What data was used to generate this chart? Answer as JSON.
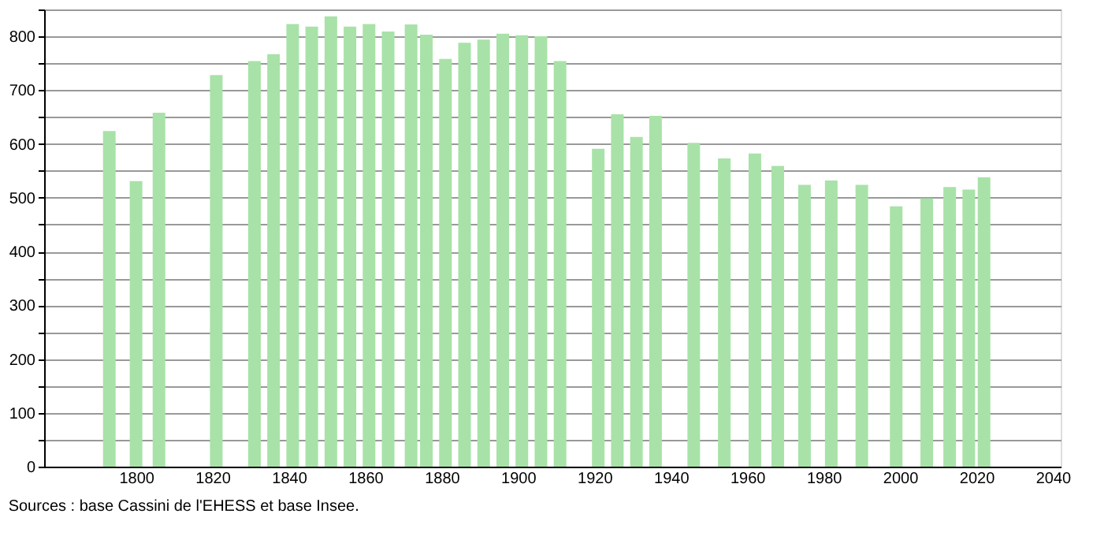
{
  "chart_data": {
    "type": "bar",
    "x": [
      1793,
      1800,
      1806,
      1821,
      1831,
      1836,
      1841,
      1846,
      1851,
      1856,
      1861,
      1866,
      1872,
      1876,
      1881,
      1886,
      1891,
      1896,
      1901,
      1906,
      1911,
      1921,
      1926,
      1931,
      1936,
      1946,
      1954,
      1962,
      1968,
      1975,
      1982,
      1990,
      1999,
      2007,
      2013,
      2018,
      2022
    ],
    "values": [
      624,
      531,
      658,
      728,
      754,
      767,
      823,
      818,
      837,
      818,
      823,
      809,
      822,
      803,
      758,
      788,
      794,
      805,
      802,
      800,
      754,
      591,
      655,
      613,
      652,
      602,
      573,
      582,
      559,
      524,
      532,
      524,
      484,
      499,
      520,
      515,
      538
    ],
    "color": "#a8e2a8",
    "xlim": [
      1778,
      2040
    ],
    "xticks": [
      1800,
      1820,
      1840,
      1860,
      1880,
      1900,
      1920,
      1940,
      1960,
      1980,
      2000,
      2020,
      2040
    ],
    "ylim": [
      0,
      850
    ],
    "yticks": [
      0,
      {
        "value": 50,
        "label": null
      },
      100,
      {
        "value": 150,
        "label": null
      },
      200,
      {
        "value": 250,
        "label": null
      },
      300,
      {
        "value": 350,
        "label": null
      },
      400,
      {
        "value": 450,
        "label": null
      },
      500,
      {
        "value": 550,
        "label": null
      },
      600,
      {
        "value": 650,
        "label": null
      },
      700,
      {
        "value": 750,
        "label": null
      },
      800,
      {
        "value": 850,
        "label": null
      }
    ],
    "grid": "y",
    "annotations": [
      "Sources : base Cassini de l'EHESS et base Insee."
    ]
  }
}
